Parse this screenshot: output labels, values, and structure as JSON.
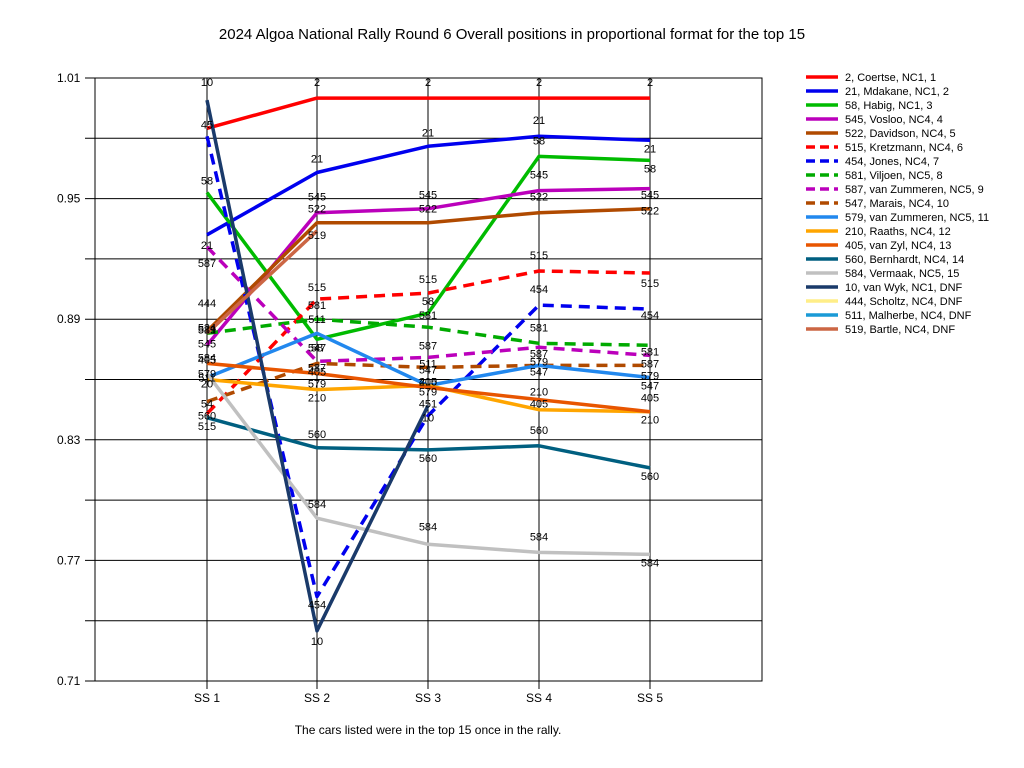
{
  "chart_data": {
    "type": "line",
    "title": "2024 Algoa National Rally Round 6  Overall positions in proportional format for the top 15",
    "footnote": "The cars listed were in the top 15 once in the rally.",
    "xlabel": "",
    "ylabel": "",
    "categories": [
      "SS 1",
      "SS 2",
      "SS 3",
      "SS 4",
      "SS 5"
    ],
    "ylim": [
      0.71,
      1.01
    ],
    "yticks": [
      1.01,
      0.95,
      0.89,
      0.83,
      0.77,
      0.71
    ],
    "grid": true,
    "legend_position": "right",
    "series": [
      {
        "name": "2, Coertse, NC1, 1",
        "label": "2",
        "color": "#ff0000",
        "dash": false,
        "values": [
          0.985,
          1.0,
          1.0,
          1.0,
          1.0
        ]
      },
      {
        "name": "21, Mdakane, NC1, 2",
        "label": "21",
        "color": "#0000ee",
        "dash": false,
        "values": [
          0.932,
          0.963,
          0.976,
          0.981,
          0.979
        ]
      },
      {
        "name": "58, Habig, NC1, 3",
        "label": "58",
        "color": "#00bb00",
        "dash": false,
        "values": [
          0.953,
          0.88,
          0.893,
          0.971,
          0.969
        ]
      },
      {
        "name": "545, Vosloo, NC4, 4",
        "label": "545",
        "color": "#bb00bb",
        "dash": false,
        "values": [
          0.877,
          0.943,
          0.945,
          0.954,
          0.955
        ]
      },
      {
        "name": "522, Davidson, NC4, 5",
        "label": "522",
        "color": "#b04a00",
        "dash": false,
        "values": [
          0.884,
          0.938,
          0.938,
          0.943,
          0.945
        ]
      },
      {
        "name": "515, Kretzmann, NC4, 6",
        "label": "515",
        "color": "#ff0000",
        "dash": true,
        "values": [
          0.843,
          0.9,
          0.903,
          0.914,
          0.913
        ]
      },
      {
        "name": "454, Jones, NC4, 7",
        "label": "454",
        "color": "#0000ee",
        "dash": true,
        "values": [
          0.981,
          0.752,
          0.842,
          0.897,
          0.895
        ]
      },
      {
        "name": "581, Viljoen, NC5, 8",
        "label": "581",
        "color": "#00aa00",
        "dash": true,
        "values": [
          0.883,
          0.89,
          0.886,
          0.878,
          0.877
        ]
      },
      {
        "name": "587, van Zummeren, NC5, 9",
        "label": "587",
        "color": "#bb00bb",
        "dash": true,
        "values": [
          0.926,
          0.869,
          0.871,
          0.876,
          0.872
        ]
      },
      {
        "name": "547, Marais, NC4, 10",
        "label": "547",
        "color": "#b04a00",
        "dash": true,
        "values": [
          0.849,
          0.868,
          0.866,
          0.867,
          0.867
        ]
      },
      {
        "name": "579, van Zummeren, NC5, 11",
        "label": "579",
        "color": "#2288ee",
        "dash": false,
        "values": [
          0.861,
          0.883,
          0.857,
          0.867,
          0.861
        ]
      },
      {
        "name": "210, Raaths, NC4, 12",
        "label": "210",
        "color": "#ffa500",
        "dash": false,
        "values": [
          0.86,
          0.855,
          0.857,
          0.845,
          0.844
        ]
      },
      {
        "name": "405, van Zyl, NC4, 13",
        "label": "405",
        "color": "#e85500",
        "dash": false,
        "values": [
          0.868,
          0.863,
          0.856,
          0.85,
          0.844
        ]
      },
      {
        "name": "560, Bernhardt, NC4, 14",
        "label": "560",
        "color": "#005f80",
        "dash": false,
        "values": [
          0.841,
          0.826,
          0.825,
          0.827,
          0.816
        ]
      },
      {
        "name": "584, Vermaak, NC5, 15",
        "label": "584",
        "color": "#c0c0c0",
        "dash": false,
        "values": [
          0.863,
          0.791,
          0.778,
          0.774,
          0.773
        ]
      },
      {
        "name": "10, van Wyk, NC1,  DNF",
        "label": "10",
        "color": "#1a3a6a",
        "dash": false,
        "values": [
          0.999,
          0.735,
          0.847,
          null,
          null
        ]
      },
      {
        "name": "444, Scholtz, NC4,  DNF",
        "label": "444",
        "color": "#ffee88",
        "dash": false,
        "values": [
          null,
          null,
          null,
          null,
          null
        ]
      },
      {
        "name": "511, Malherbe, NC4,  DNF",
        "label": "511",
        "color": "#1a9ad6",
        "dash": false,
        "values": [
          null,
          null,
          null,
          null,
          null
        ]
      },
      {
        "name": "519, Bartle, NC4,  DNF",
        "label": "519",
        "color": "#cc6644",
        "dash": false,
        "values": [
          0.883,
          0.934,
          null,
          null,
          null
        ]
      }
    ],
    "data_labels": [
      {
        "text": "10",
        "x": "SS 1",
        "y": 1.006
      },
      {
        "text": "45",
        "x": "SS 1",
        "y": 0.985
      },
      {
        "text": "58",
        "x": "SS 1",
        "y": 0.957
      },
      {
        "text": "21",
        "x": "SS 1",
        "y": 0.925
      },
      {
        "text": "587",
        "x": "SS 1",
        "y": 0.916
      },
      {
        "text": "444",
        "x": "SS 1",
        "y": 0.896
      },
      {
        "text": "581",
        "x": "SS 1",
        "y": 0.883
      },
      {
        "text": "524",
        "x": "SS 1",
        "y": 0.884
      },
      {
        "text": "519",
        "x": "SS 1",
        "y": 0.883
      },
      {
        "text": "545",
        "x": "SS 1",
        "y": 0.876
      },
      {
        "text": "405",
        "x": "SS 1",
        "y": 0.868
      },
      {
        "text": "584",
        "x": "SS 1",
        "y": 0.869
      },
      {
        "text": "579",
        "x": "SS 1",
        "y": 0.861
      },
      {
        "text": "511",
        "x": "SS 1",
        "y": 0.859
      },
      {
        "text": "20",
        "x": "SS 1",
        "y": 0.856
      },
      {
        "text": "54",
        "x": "SS 1",
        "y": 0.846
      },
      {
        "text": "560",
        "x": "SS 1",
        "y": 0.84
      },
      {
        "text": "515",
        "x": "SS 1",
        "y": 0.835
      },
      {
        "text": "2",
        "x": "SS 2",
        "y": 1.006
      },
      {
        "text": "21",
        "x": "SS 2",
        "y": 0.968
      },
      {
        "text": "545",
        "x": "SS 2",
        "y": 0.949
      },
      {
        "text": "522",
        "x": "SS 2",
        "y": 0.943
      },
      {
        "text": "519",
        "x": "SS 2",
        "y": 0.93
      },
      {
        "text": "515",
        "x": "SS 2",
        "y": 0.904
      },
      {
        "text": "581",
        "x": "SS 2",
        "y": 0.895
      },
      {
        "text": "511",
        "x": "SS 2",
        "y": 0.888
      },
      {
        "text": "547",
        "x": "SS 2",
        "y": 0.874
      },
      {
        "text": "58",
        "x": "SS 2",
        "y": 0.874
      },
      {
        "text": "587",
        "x": "SS 2",
        "y": 0.864
      },
      {
        "text": "405",
        "x": "SS 2",
        "y": 0.862
      },
      {
        "text": "579",
        "x": "SS 2",
        "y": 0.856
      },
      {
        "text": "210",
        "x": "SS 2",
        "y": 0.849
      },
      {
        "text": "560",
        "x": "SS 2",
        "y": 0.831
      },
      {
        "text": "584",
        "x": "SS 2",
        "y": 0.796
      },
      {
        "text": "454",
        "x": "SS 2",
        "y": 0.746
      },
      {
        "text": "10",
        "x": "SS 2",
        "y": 0.728
      },
      {
        "text": "2",
        "x": "SS 3",
        "y": 1.006
      },
      {
        "text": "21",
        "x": "SS 3",
        "y": 0.981
      },
      {
        "text": "545",
        "x": "SS 3",
        "y": 0.95
      },
      {
        "text": "522",
        "x": "SS 3",
        "y": 0.943
      },
      {
        "text": "515",
        "x": "SS 3",
        "y": 0.908
      },
      {
        "text": "58",
        "x": "SS 3",
        "y": 0.897
      },
      {
        "text": "581",
        "x": "SS 3",
        "y": 0.89
      },
      {
        "text": "587",
        "x": "SS 3",
        "y": 0.875
      },
      {
        "text": "511",
        "x": "SS 3",
        "y": 0.866
      },
      {
        "text": "547",
        "x": "SS 3",
        "y": 0.863
      },
      {
        "text": "210",
        "x": "SS 3",
        "y": 0.857
      },
      {
        "text": "405",
        "x": "SS 3",
        "y": 0.857
      },
      {
        "text": "579",
        "x": "SS 3",
        "y": 0.852
      },
      {
        "text": "451",
        "x": "SS 3",
        "y": 0.846
      },
      {
        "text": "10",
        "x": "SS 3",
        "y": 0.839
      },
      {
        "text": "560",
        "x": "SS 3",
        "y": 0.819
      },
      {
        "text": "584",
        "x": "SS 3",
        "y": 0.785
      },
      {
        "text": "2",
        "x": "SS 4",
        "y": 1.006
      },
      {
        "text": "21",
        "x": "SS 4",
        "y": 0.987
      },
      {
        "text": "58",
        "x": "SS 4",
        "y": 0.977
      },
      {
        "text": "545",
        "x": "SS 4",
        "y": 0.96
      },
      {
        "text": "522",
        "x": "SS 4",
        "y": 0.949
      },
      {
        "text": "515",
        "x": "SS 4",
        "y": 0.92
      },
      {
        "text": "454",
        "x": "SS 4",
        "y": 0.903
      },
      {
        "text": "581",
        "x": "SS 4",
        "y": 0.884
      },
      {
        "text": "587",
        "x": "SS 4",
        "y": 0.871
      },
      {
        "text": "579",
        "x": "SS 4",
        "y": 0.867
      },
      {
        "text": "547",
        "x": "SS 4",
        "y": 0.862
      },
      {
        "text": "210",
        "x": "SS 4",
        "y": 0.852
      },
      {
        "text": "405",
        "x": "SS 4",
        "y": 0.846
      },
      {
        "text": "560",
        "x": "SS 4",
        "y": 0.833
      },
      {
        "text": "584",
        "x": "SS 4",
        "y": 0.78
      },
      {
        "text": "2",
        "x": "SS 5",
        "y": 1.006
      },
      {
        "text": "21",
        "x": "SS 5",
        "y": 0.973
      },
      {
        "text": "58",
        "x": "SS 5",
        "y": 0.963
      },
      {
        "text": "545",
        "x": "SS 5",
        "y": 0.95
      },
      {
        "text": "522",
        "x": "SS 5",
        "y": 0.942
      },
      {
        "text": "515",
        "x": "SS 5",
        "y": 0.906
      },
      {
        "text": "454",
        "x": "SS 5",
        "y": 0.89
      },
      {
        "text": "581",
        "x": "SS 5",
        "y": 0.872
      },
      {
        "text": "587",
        "x": "SS 5",
        "y": 0.866
      },
      {
        "text": "579",
        "x": "SS 5",
        "y": 0.86
      },
      {
        "text": "547",
        "x": "SS 5",
        "y": 0.855
      },
      {
        "text": "405",
        "x": "SS 5",
        "y": 0.849
      },
      {
        "text": "210",
        "x": "SS 5",
        "y": 0.838
      },
      {
        "text": "560",
        "x": "SS 5",
        "y": 0.81
      },
      {
        "text": "584",
        "x": "SS 5",
        "y": 0.767
      }
    ]
  }
}
